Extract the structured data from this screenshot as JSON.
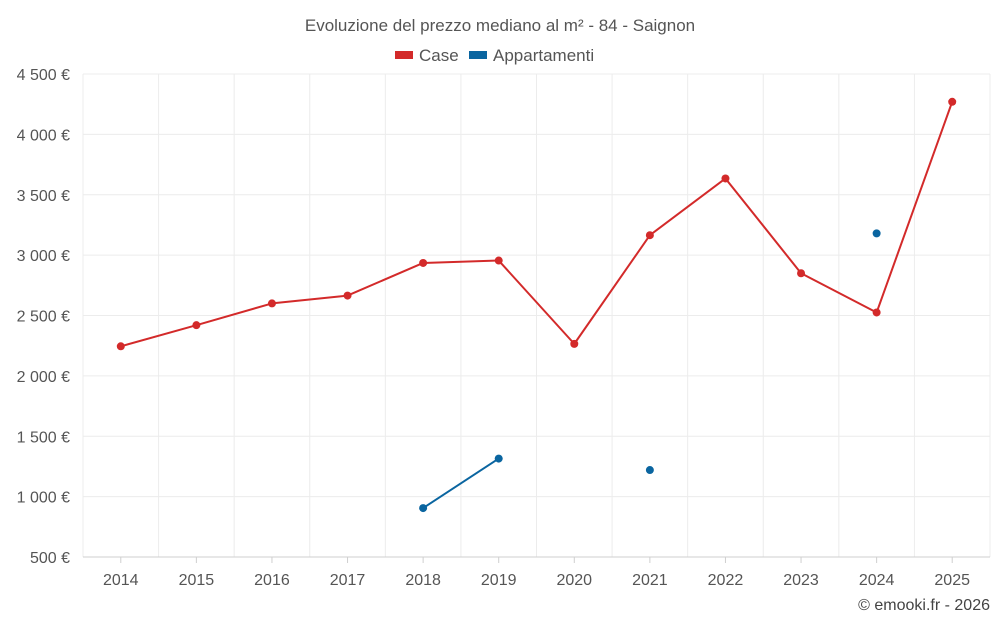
{
  "chart_data": {
    "type": "line",
    "title": "Evoluzione del prezzo mediano al m² - 84 - Saignon",
    "categories": [
      "2014",
      "2015",
      "2016",
      "2017",
      "2018",
      "2019",
      "2020",
      "2021",
      "2022",
      "2023",
      "2024",
      "2025"
    ],
    "y_ticks": [
      "500 €",
      "1 000 €",
      "1 500 €",
      "2 000 €",
      "2 500 €",
      "3 000 €",
      "3 500 €",
      "4 000 €",
      "4 500 €"
    ],
    "ylim": [
      500,
      4500
    ],
    "grid": true,
    "legend_position": "top-center",
    "series": [
      {
        "name": "Case",
        "color": "#d32a2a",
        "values": [
          2245,
          2420,
          2600,
          2665,
          2935,
          2955,
          2265,
          3165,
          3635,
          2850,
          2525,
          4270
        ]
      },
      {
        "name": "Appartamenti",
        "color": "#0a65a0",
        "values": [
          null,
          null,
          null,
          null,
          905,
          1315,
          null,
          1220,
          null,
          null,
          3180,
          null
        ]
      }
    ]
  },
  "credit": "© emooki.fr - 2026"
}
